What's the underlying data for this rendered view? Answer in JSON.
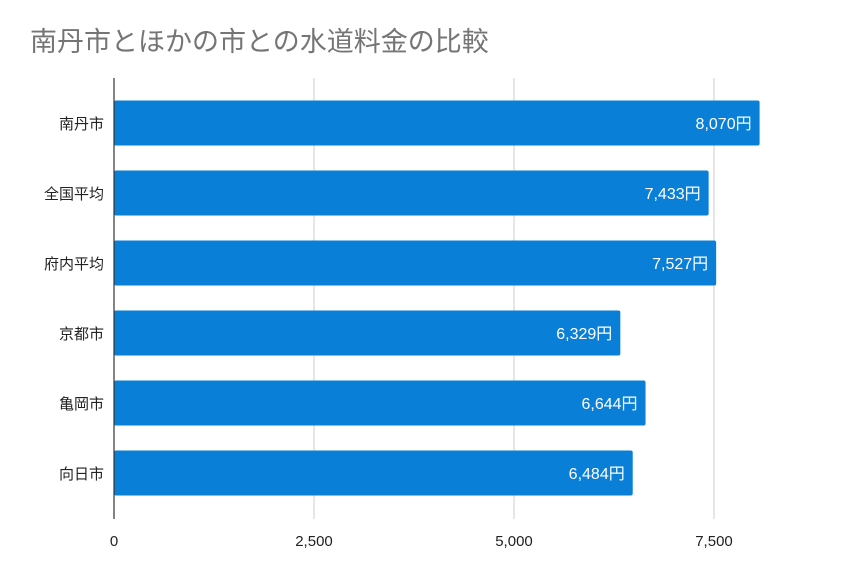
{
  "chart_data": {
    "type": "bar",
    "orientation": "horizontal",
    "title": "南丹市とほかの市との水道料金の比較",
    "categories": [
      "南丹市",
      "全国平均",
      "府内平均",
      "京都市",
      "亀岡市",
      "向日市"
    ],
    "values": [
      8070,
      7433,
      7527,
      6329,
      6644,
      6484
    ],
    "data_labels": [
      "8,070円",
      "7,433円",
      "7,527円",
      "6,329円",
      "6,644円",
      "6,484円"
    ],
    "xticks": [
      0,
      2500,
      5000,
      7500
    ],
    "xtick_labels": [
      "0",
      "2,500",
      "5,000",
      "7,500"
    ],
    "xlim": [
      0,
      8400
    ],
    "grid": "vertical",
    "legend": "none",
    "colors": {
      "bar": "#0a7fd8",
      "grid": "#cccccc",
      "title": "#757575",
      "axis": "#333333"
    }
  }
}
